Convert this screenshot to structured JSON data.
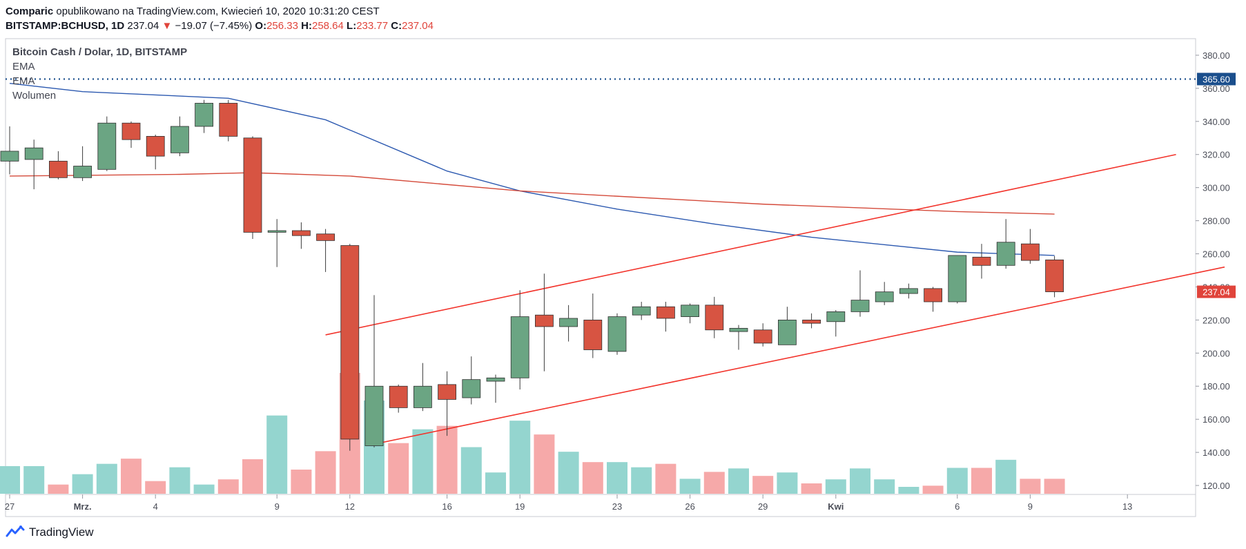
{
  "header": {
    "author": "Comparic",
    "published": "opublikowano na TradingView.com, Kwiecień 10, 2020 10:31:20 CEST",
    "symbol": "BITSTAMP:BCHUSD, 1D",
    "last": "237.04",
    "arrow": "▼",
    "change": "−19.07 (−7.45%)",
    "o_label": "O:",
    "o": "256.33",
    "h_label": "H:",
    "h": "258.64",
    "l_label": "L:",
    "l": "233.77",
    "c_label": "C:",
    "c": "237.04"
  },
  "legend": {
    "title": "Bitcoin Cash / Dolar, 1D, BITSTAMP",
    "ema1": "EMA",
    "ema2": "EMA",
    "volume": "Wolumen"
  },
  "footer": {
    "brand": "TradingView"
  },
  "colors": {
    "up": "#6ba583",
    "down": "#d75442",
    "vol_up": "#94d5cf",
    "vol_down": "#f6a9a9",
    "ema_fast": "#2c59b0",
    "ema_slow": "#d44a3a",
    "trend": "#f2332b",
    "level": "#1a4e8c",
    "price_badge": "#e0443b"
  },
  "chart_data": {
    "type": "candlestick",
    "ylim": [
      115,
      390
    ],
    "y_ticks": [
      "120.00",
      "140.00",
      "160.00",
      "180.00",
      "200.00",
      "220.00",
      "240.00",
      "260.00",
      "280.00",
      "300.00",
      "320.00",
      "340.00",
      "360.00",
      "380.00"
    ],
    "x_ticks": [
      {
        "label": "27",
        "x": "2020-02-27"
      },
      {
        "label": "Mrz.",
        "x": "2020-03-01"
      },
      {
        "label": "4",
        "x": "2020-03-04"
      },
      {
        "label": "9",
        "x": "2020-03-09"
      },
      {
        "label": "12",
        "x": "2020-03-12"
      },
      {
        "label": "16",
        "x": "2020-03-16"
      },
      {
        "label": "19",
        "x": "2020-03-19"
      },
      {
        "label": "23",
        "x": "2020-03-23"
      },
      {
        "label": "26",
        "x": "2020-03-26"
      },
      {
        "label": "29",
        "x": "2020-03-29"
      },
      {
        "label": "Kwi",
        "x": "2020-04-01"
      },
      {
        "label": "6",
        "x": "2020-04-06"
      },
      {
        "label": "9",
        "x": "2020-04-09"
      },
      {
        "label": "13",
        "x": "2020-04-13"
      }
    ],
    "candles": [
      {
        "date": "2020-02-27",
        "o": 316,
        "h": 337,
        "l": 308,
        "c": 322
      },
      {
        "date": "2020-02-28",
        "o": 317,
        "h": 329,
        "l": 299,
        "c": 324
      },
      {
        "date": "2020-02-29",
        "o": 316,
        "h": 322,
        "l": 305,
        "c": 306
      },
      {
        "date": "2020-03-01",
        "o": 306,
        "h": 325,
        "l": 304,
        "c": 313
      },
      {
        "date": "2020-03-02",
        "o": 311,
        "h": 343,
        "l": 310,
        "c": 339
      },
      {
        "date": "2020-03-03",
        "o": 339,
        "h": 340,
        "l": 324,
        "c": 329
      },
      {
        "date": "2020-03-04",
        "o": 331,
        "h": 332,
        "l": 311,
        "c": 319
      },
      {
        "date": "2020-03-05",
        "o": 321,
        "h": 343,
        "l": 319,
        "c": 337
      },
      {
        "date": "2020-03-06",
        "o": 337,
        "h": 353,
        "l": 333,
        "c": 351
      },
      {
        "date": "2020-03-07",
        "o": 351,
        "h": 353,
        "l": 328,
        "c": 331
      },
      {
        "date": "2020-03-08",
        "o": 330,
        "h": 331,
        "l": 269,
        "c": 273
      },
      {
        "date": "2020-03-09",
        "o": 273,
        "h": 281,
        "l": 252,
        "c": 274
      },
      {
        "date": "2020-03-10",
        "o": 274,
        "h": 279,
        "l": 263,
        "c": 271
      },
      {
        "date": "2020-03-11",
        "o": 272,
        "h": 275,
        "l": 249,
        "c": 268
      },
      {
        "date": "2020-03-12",
        "o": 265,
        "h": 266,
        "l": 141,
        "c": 148
      },
      {
        "date": "2020-03-13",
        "o": 144,
        "h": 235,
        "l": 143,
        "c": 180
      },
      {
        "date": "2020-03-14",
        "o": 180,
        "h": 181,
        "l": 164,
        "c": 167
      },
      {
        "date": "2020-03-15",
        "o": 167,
        "h": 194,
        "l": 165,
        "c": 180
      },
      {
        "date": "2020-03-16",
        "o": 181,
        "h": 189,
        "l": 150,
        "c": 172
      },
      {
        "date": "2020-03-17",
        "o": 173,
        "h": 198,
        "l": 169,
        "c": 184
      },
      {
        "date": "2020-03-18",
        "o": 183,
        "h": 187,
        "l": 170,
        "c": 185
      },
      {
        "date": "2020-03-19",
        "o": 185,
        "h": 238,
        "l": 178,
        "c": 222
      },
      {
        "date": "2020-03-20",
        "o": 223,
        "h": 248,
        "l": 189,
        "c": 216
      },
      {
        "date": "2020-03-21",
        "o": 216,
        "h": 229,
        "l": 207,
        "c": 221
      },
      {
        "date": "2020-03-22",
        "o": 220,
        "h": 236,
        "l": 197,
        "c": 202
      },
      {
        "date": "2020-03-23",
        "o": 201,
        "h": 224,
        "l": 199,
        "c": 222
      },
      {
        "date": "2020-03-24",
        "o": 223,
        "h": 231,
        "l": 220,
        "c": 228
      },
      {
        "date": "2020-03-25",
        "o": 228,
        "h": 231,
        "l": 213,
        "c": 221
      },
      {
        "date": "2020-03-26",
        "o": 222,
        "h": 230,
        "l": 218,
        "c": 229
      },
      {
        "date": "2020-03-27",
        "o": 229,
        "h": 234,
        "l": 209,
        "c": 214
      },
      {
        "date": "2020-03-28",
        "o": 213,
        "h": 217,
        "l": 202,
        "c": 215
      },
      {
        "date": "2020-03-29",
        "o": 214,
        "h": 218,
        "l": 204,
        "c": 206
      },
      {
        "date": "2020-03-30",
        "o": 205,
        "h": 228,
        "l": 205,
        "c": 220
      },
      {
        "date": "2020-03-31",
        "o": 220,
        "h": 224,
        "l": 215,
        "c": 218
      },
      {
        "date": "2020-04-01",
        "o": 219,
        "h": 226,
        "l": 210,
        "c": 225
      },
      {
        "date": "2020-04-02",
        "o": 225,
        "h": 250,
        "l": 222,
        "c": 232
      },
      {
        "date": "2020-04-03",
        "o": 231,
        "h": 243,
        "l": 229,
        "c": 237
      },
      {
        "date": "2020-04-04",
        "o": 236,
        "h": 242,
        "l": 233,
        "c": 239
      },
      {
        "date": "2020-04-05",
        "o": 239,
        "h": 240,
        "l": 225,
        "c": 231
      },
      {
        "date": "2020-04-06",
        "o": 231,
        "h": 259,
        "l": 230,
        "c": 259
      },
      {
        "date": "2020-04-07",
        "o": 258,
        "h": 266,
        "l": 245,
        "c": 253
      },
      {
        "date": "2020-04-08",
        "o": 253,
        "h": 281,
        "l": 251,
        "c": 267
      },
      {
        "date": "2020-04-09",
        "o": 266,
        "h": 275,
        "l": 254,
        "c": 256
      },
      {
        "date": "2020-04-10",
        "o": 256.33,
        "h": 258.64,
        "l": 233.77,
        "c": 237.04
      }
    ],
    "volume": [
      0.48,
      0.48,
      0.16,
      0.34,
      0.52,
      0.61,
      0.22,
      0.46,
      0.16,
      0.25,
      0.6,
      1.36,
      0.42,
      0.74,
      2.1,
      1.62,
      0.88,
      1.12,
      1.18,
      0.81,
      0.37,
      1.27,
      1.03,
      0.73,
      0.55,
      0.55,
      0.46,
      0.52,
      0.26,
      0.38,
      0.44,
      0.31,
      0.37,
      0.18,
      0.25,
      0.44,
      0.25,
      0.12,
      0.14,
      0.45,
      0.45,
      0.59,
      0.26,
      0.26
    ],
    "series": [
      {
        "type": "line",
        "color_key": "ema_fast",
        "points": [
          [
            "2020-02-27",
            363
          ],
          [
            "2020-03-01",
            358
          ],
          [
            "2020-03-07",
            354
          ],
          [
            "2020-03-11",
            341
          ],
          [
            "2020-03-16",
            310
          ],
          [
            "2020-03-19",
            298
          ],
          [
            "2020-03-23",
            287
          ],
          [
            "2020-03-27",
            278
          ],
          [
            "2020-03-31",
            270
          ],
          [
            "2020-04-06",
            261
          ],
          [
            "2020-04-10",
            259
          ]
        ]
      },
      {
        "type": "line",
        "color_key": "ema_slow",
        "points": [
          [
            "2020-02-27",
            307
          ],
          [
            "2020-03-05",
            308
          ],
          [
            "2020-03-08",
            309
          ],
          [
            "2020-03-12",
            307
          ],
          [
            "2020-03-19",
            298
          ],
          [
            "2020-03-29",
            290
          ],
          [
            "2020-04-06",
            285.5
          ],
          [
            "2020-04-10",
            284
          ]
        ]
      },
      {
        "type": "trendline",
        "color_key": "trend",
        "points": [
          [
            "2020-03-11",
            211
          ],
          [
            "2020-04-15",
            320
          ]
        ]
      },
      {
        "type": "trendline",
        "color_key": "trend",
        "points": [
          [
            "2020-03-13",
            145
          ],
          [
            "2020-04-17",
            252
          ]
        ]
      }
    ],
    "hlines": [
      {
        "value": 365.6,
        "label": "365.60",
        "style": "dotted"
      }
    ],
    "last_price": {
      "value": 237.04,
      "label": "237.04"
    }
  }
}
